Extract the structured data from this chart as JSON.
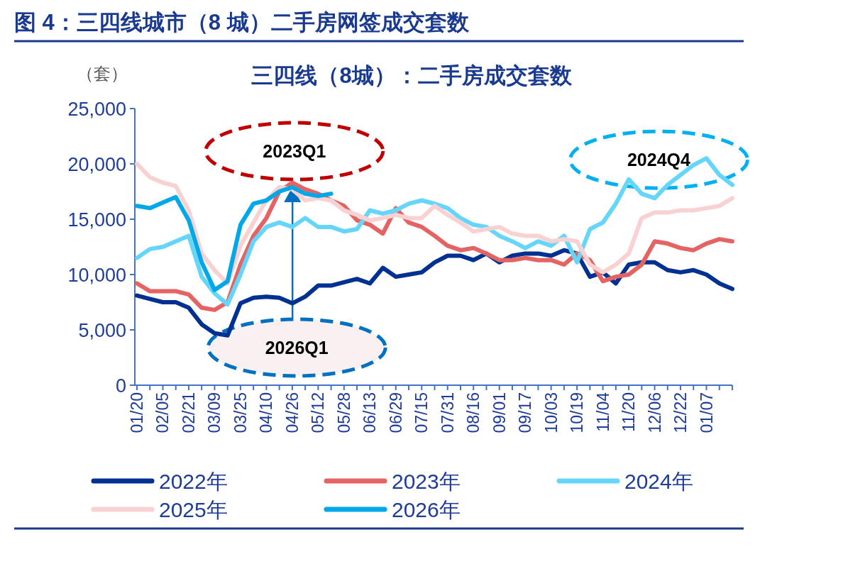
{
  "chart_data": {
    "type": "line",
    "title": "图 4：三四线城市（8 城）二手房网签成交套数",
    "subtitle": "三四线（8城）：二手房成交套数",
    "ylabel": "（套）",
    "categories": [
      "01/20",
      null,
      "02/05",
      null,
      "02/21",
      null,
      "03/09",
      null,
      "03/25",
      null,
      "04/10",
      null,
      "04/26",
      null,
      "05/12",
      null,
      "05/28",
      null,
      "06/13",
      null,
      "06/29",
      null,
      "07/15",
      null,
      "07/31",
      null,
      "08/16",
      null,
      "09/01",
      null,
      "09/17",
      null,
      "10/03",
      null,
      "10/19",
      null,
      "11/04",
      null,
      "11/20",
      null,
      "12/06",
      null,
      "12/22",
      null,
      "01/07",
      null,
      null
    ],
    "series": [
      {
        "name": "2022年",
        "color": "#003192",
        "values": [
          8100,
          7800,
          7500,
          7500,
          7000,
          5500,
          4700,
          4500,
          7400,
          7900,
          8000,
          7900,
          7400,
          8000,
          9000,
          9000,
          9300,
          9600,
          9200,
          10600,
          9800,
          10000,
          10200,
          11100,
          11700,
          11700,
          11300,
          11900,
          11100,
          11700,
          11900,
          11900,
          11700,
          12200,
          11900,
          9800,
          10200,
          9200,
          10900,
          11100,
          11100,
          10400,
          10200,
          10400,
          10000,
          9200,
          8700
        ]
      },
      {
        "name": "2023年",
        "color": "#e46464",
        "values": [
          9200,
          8500,
          8500,
          8500,
          8200,
          7000,
          6800,
          7500,
          10900,
          13500,
          15100,
          17500,
          18300,
          17700,
          17300,
          16700,
          16200,
          14900,
          14500,
          13700,
          16000,
          14700,
          14300,
          13500,
          12600,
          12200,
          12400,
          11900,
          11300,
          11300,
          11500,
          11300,
          11300,
          10900,
          11900,
          11300,
          9400,
          9800,
          10000,
          10900,
          13000,
          12800,
          12400,
          12200,
          12800,
          13200,
          13000
        ]
      },
      {
        "name": "2024年",
        "color": "#66d5fa",
        "values": [
          11500,
          12300,
          12500,
          13000,
          13500,
          9800,
          8300,
          7300,
          10000,
          13000,
          14300,
          14700,
          14300,
          15100,
          14300,
          14300,
          13900,
          14100,
          15800,
          15500,
          15800,
          16400,
          16700,
          16400,
          16000,
          15100,
          14500,
          14300,
          13500,
          13000,
          12400,
          13000,
          12600,
          13500,
          11100,
          14100,
          14700,
          16400,
          18600,
          17300,
          16900,
          18100,
          19000,
          19900,
          20500,
          19000,
          18100
        ]
      },
      {
        "name": "2025年",
        "color": "#f8d2d2",
        "values": [
          20000,
          18800,
          18300,
          18000,
          15800,
          11900,
          10400,
          9200,
          12600,
          14700,
          16700,
          17900,
          17700,
          16700,
          16900,
          16700,
          15800,
          15400,
          14900,
          15100,
          15400,
          15100,
          15100,
          16200,
          15400,
          14700,
          13900,
          14100,
          14300,
          13700,
          13500,
          13500,
          13000,
          13200,
          13000,
          10900,
          10200,
          10900,
          11900,
          15100,
          15600,
          15600,
          15800,
          15800,
          16000,
          16200,
          16900
        ]
      },
      {
        "name": "2026年",
        "color": "#00a8e8",
        "values": [
          16200,
          16000,
          16500,
          17000,
          14900,
          11100,
          8600,
          9400,
          14500,
          16400,
          16700,
          17500,
          17900,
          17300,
          17100,
          17300,
          null,
          null,
          null,
          null,
          null,
          null,
          null,
          null,
          null,
          null,
          null,
          null,
          null,
          null,
          null,
          null,
          null,
          null,
          null,
          null,
          null,
          null,
          null,
          null,
          null,
          null,
          null,
          null,
          null,
          null,
          null
        ]
      }
    ],
    "ylim": [
      0,
      25000
    ],
    "yticks": [
      {
        "value": 0,
        "label": "0"
      },
      {
        "value": 5000,
        "label": "5,000"
      },
      {
        "value": 10000,
        "label": "10,000"
      },
      {
        "value": 15000,
        "label": "15,000"
      },
      {
        "value": 20000,
        "label": "20,000"
      },
      {
        "value": 25000,
        "label": "25,000"
      }
    ],
    "annotations": [
      "2023Q1",
      "2024Q4",
      "2026Q1"
    ],
    "legend": "bottom",
    "grid": false,
    "marker": "none",
    "line_style": "solid"
  }
}
